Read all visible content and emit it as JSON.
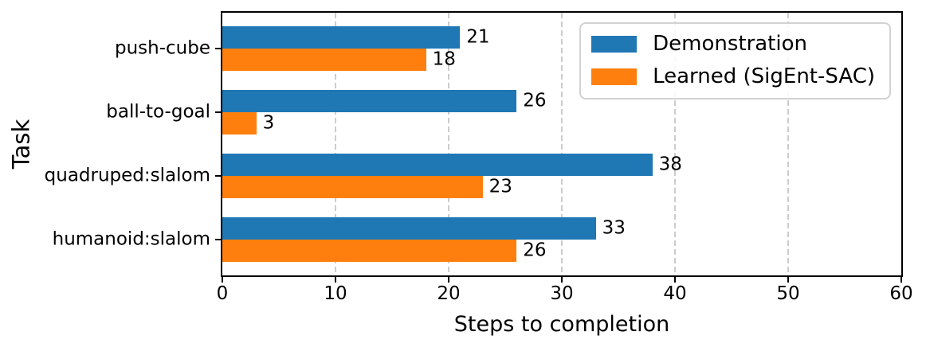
{
  "chart_data": {
    "type": "bar",
    "orientation": "horizontal",
    "xlabel": "Steps to completion",
    "ylabel": "Task",
    "categories": [
      "push-cube",
      "ball-to-goal",
      "quadruped:slalom",
      "humanoid:slalom"
    ],
    "series": [
      {
        "name": "Demonstration",
        "color": "#1f77b4",
        "values": [
          21,
          26,
          38,
          33
        ]
      },
      {
        "name": "Learned (SigEnt-SAC)",
        "color": "#ff7f0e",
        "values": [
          18,
          3,
          23,
          26
        ]
      }
    ],
    "xlim": [
      0,
      60
    ],
    "xticks": [
      0,
      10,
      20,
      30,
      40,
      50,
      60
    ],
    "grid": {
      "axis": "x",
      "style": "dashed",
      "color": "#cccccc"
    },
    "legend": {
      "position": "upper-right"
    },
    "value_labels_shown": true,
    "colors": {
      "axis": "#000000",
      "text": "#000000",
      "grid": "#cccccc"
    }
  }
}
